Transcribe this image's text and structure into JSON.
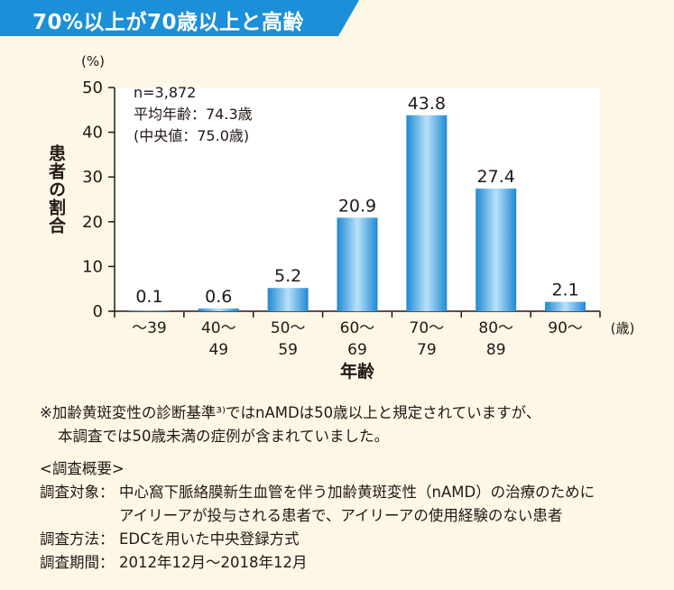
{
  "banner": {
    "title": "70%以上が70歳以上と高齢",
    "colors": {
      "background": "#1b8fd8",
      "text": "#ffffff"
    }
  },
  "chart_data": {
    "type": "bar",
    "categories": [
      "〜39",
      "40〜49",
      "50〜59",
      "60〜69",
      "70〜79",
      "80〜89",
      "90〜"
    ],
    "category_lines": [
      [
        "〜39"
      ],
      [
        "40〜",
        "49"
      ],
      [
        "50〜",
        "59"
      ],
      [
        "60〜",
        "69"
      ],
      [
        "70〜",
        "79"
      ],
      [
        "80〜",
        "89"
      ],
      [
        "90〜"
      ]
    ],
    "values": [
      0.1,
      0.6,
      5.2,
      20.9,
      43.8,
      27.4,
      2.1
    ],
    "data_labels": [
      "0.1",
      "0.6",
      "5.2",
      "20.9",
      "43.8",
      "27.4",
      "2.1"
    ],
    "ylim": [
      0,
      50
    ],
    "yticks": [
      0,
      10,
      20,
      30,
      40,
      50
    ],
    "yunit": "(%)",
    "xunit": "(歳)",
    "ylabel": "患者の割合",
    "xlabel": "年齢",
    "annotation": [
      "n=3,872",
      "平均年齢：74.3歳",
      "(中央値：75.0歳)"
    ],
    "grid": false,
    "colors": {
      "bar_light": "#b9e0f8",
      "bar_dark": "#1e8ad4",
      "plot_bg": "#ffffff"
    }
  },
  "footnote": {
    "line1": "※加齢黄斑変性の診断基準³⁾ではnAMDは50歳以上と規定されていますが、",
    "line2": "本調査では50歳未満の症例が含まれていました。"
  },
  "overview": {
    "heading": "<調査概要>",
    "target_label": "調査対象：",
    "target_line1": "中心窩下脈絡膜新生血管を伴う加齢黄斑変性（nAMD）の治療のために",
    "target_line2": "アイリーアが投与される患者で、アイリーアの使用経験のない患者",
    "method_label": "調査方法：",
    "method_value": "EDCを用いた中央登録方式",
    "period_label": "調査期間：",
    "period_value": "2012年12月〜2018年12月"
  }
}
